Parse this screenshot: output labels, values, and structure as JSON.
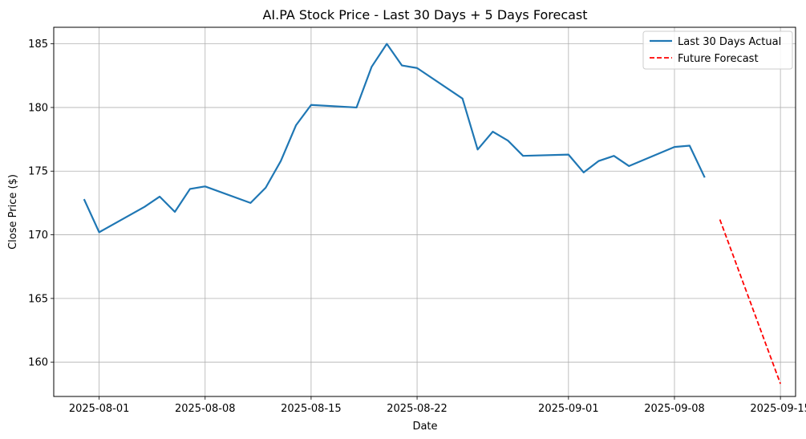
{
  "chart_data": {
    "type": "line",
    "title": "AI.PA Stock Price - Last 30 Days + 5 Days Forecast",
    "xlabel": "Date",
    "ylabel": "Close Price ($)",
    "grid": true,
    "legend_position": "top-right",
    "x_range": [
      "2025-07-29",
      "2025-09-16"
    ],
    "ylim": [
      157.3,
      186.3
    ],
    "x_ticks": [
      "2025-08-01",
      "2025-08-08",
      "2025-08-15",
      "2025-08-22",
      "2025-09-01",
      "2025-09-08",
      "2025-09-15"
    ],
    "y_ticks": [
      160,
      165,
      170,
      175,
      180,
      185
    ],
    "series": [
      {
        "name": "Last 30 Days Actual",
        "color": "#1f77b4",
        "style": "solid",
        "points": [
          {
            "x": "2025-07-31",
            "y": 172.8
          },
          {
            "x": "2025-08-01",
            "y": 170.2
          },
          {
            "x": "2025-08-04",
            "y": 172.2
          },
          {
            "x": "2025-08-05",
            "y": 173.0
          },
          {
            "x": "2025-08-06",
            "y": 171.8
          },
          {
            "x": "2025-08-07",
            "y": 173.6
          },
          {
            "x": "2025-08-08",
            "y": 173.8
          },
          {
            "x": "2025-08-11",
            "y": 172.5
          },
          {
            "x": "2025-08-12",
            "y": 173.7
          },
          {
            "x": "2025-08-13",
            "y": 175.8
          },
          {
            "x": "2025-08-14",
            "y": 178.6
          },
          {
            "x": "2025-08-15",
            "y": 180.2
          },
          {
            "x": "2025-08-18",
            "y": 180.0
          },
          {
            "x": "2025-08-19",
            "y": 183.2
          },
          {
            "x": "2025-08-20",
            "y": 185.0
          },
          {
            "x": "2025-08-21",
            "y": 183.3
          },
          {
            "x": "2025-08-22",
            "y": 183.1
          },
          {
            "x": "2025-08-25",
            "y": 180.7
          },
          {
            "x": "2025-08-26",
            "y": 176.7
          },
          {
            "x": "2025-08-27",
            "y": 178.1
          },
          {
            "x": "2025-08-28",
            "y": 177.4
          },
          {
            "x": "2025-08-29",
            "y": 176.2
          },
          {
            "x": "2025-09-01",
            "y": 176.3
          },
          {
            "x": "2025-09-02",
            "y": 174.9
          },
          {
            "x": "2025-09-03",
            "y": 175.8
          },
          {
            "x": "2025-09-04",
            "y": 176.2
          },
          {
            "x": "2025-09-05",
            "y": 175.4
          },
          {
            "x": "2025-09-08",
            "y": 176.9
          },
          {
            "x": "2025-09-09",
            "y": 177.0
          },
          {
            "x": "2025-09-10",
            "y": 174.5
          }
        ]
      },
      {
        "name": "Future Forecast",
        "color": "#ff0000",
        "style": "dashed",
        "points": [
          {
            "x": "2025-09-11",
            "y": 171.2
          },
          {
            "x": "2025-09-15",
            "y": 158.3
          }
        ]
      }
    ]
  }
}
